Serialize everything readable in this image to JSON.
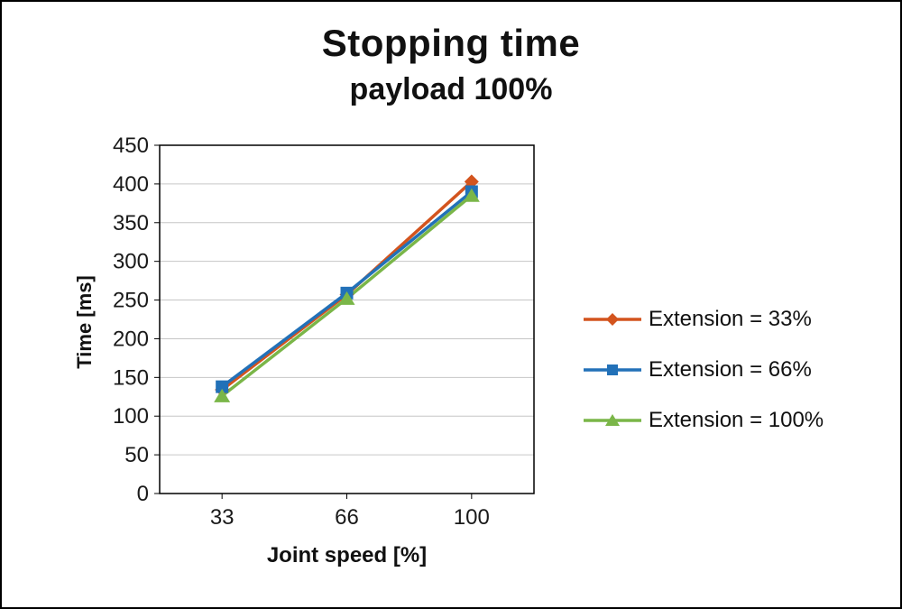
{
  "chart": {
    "title": "Stopping time",
    "subtitle": "payload 100%",
    "xlabel": "Joint speed [%]",
    "ylabel": "Time [ms]"
  },
  "chart_data": {
    "type": "line",
    "title": "Stopping time",
    "subtitle": "payload 100%",
    "xlabel": "Joint speed [%]",
    "ylabel": "Time [ms]",
    "categories": [
      "33",
      "66",
      "100"
    ],
    "series": [
      {
        "name": "Extension = 33%",
        "values": [
          134,
          257,
          403
        ],
        "color": "#D3541E",
        "marker": "diamond"
      },
      {
        "name": "Extension = 66%",
        "values": [
          138,
          259,
          390
        ],
        "color": "#2271B8",
        "marker": "square"
      },
      {
        "name": "Extension = 100%",
        "values": [
          126,
          252,
          385
        ],
        "color": "#7AB648",
        "marker": "triangle"
      }
    ],
    "ylim": [
      0,
      450
    ],
    "ytick_step": 50,
    "yticks": [
      0,
      50,
      100,
      150,
      200,
      250,
      300,
      350,
      400,
      450
    ],
    "grid": true,
    "grid_color": "#C6C6C6",
    "plot_border_color": "#000000",
    "legend_position": "right"
  }
}
